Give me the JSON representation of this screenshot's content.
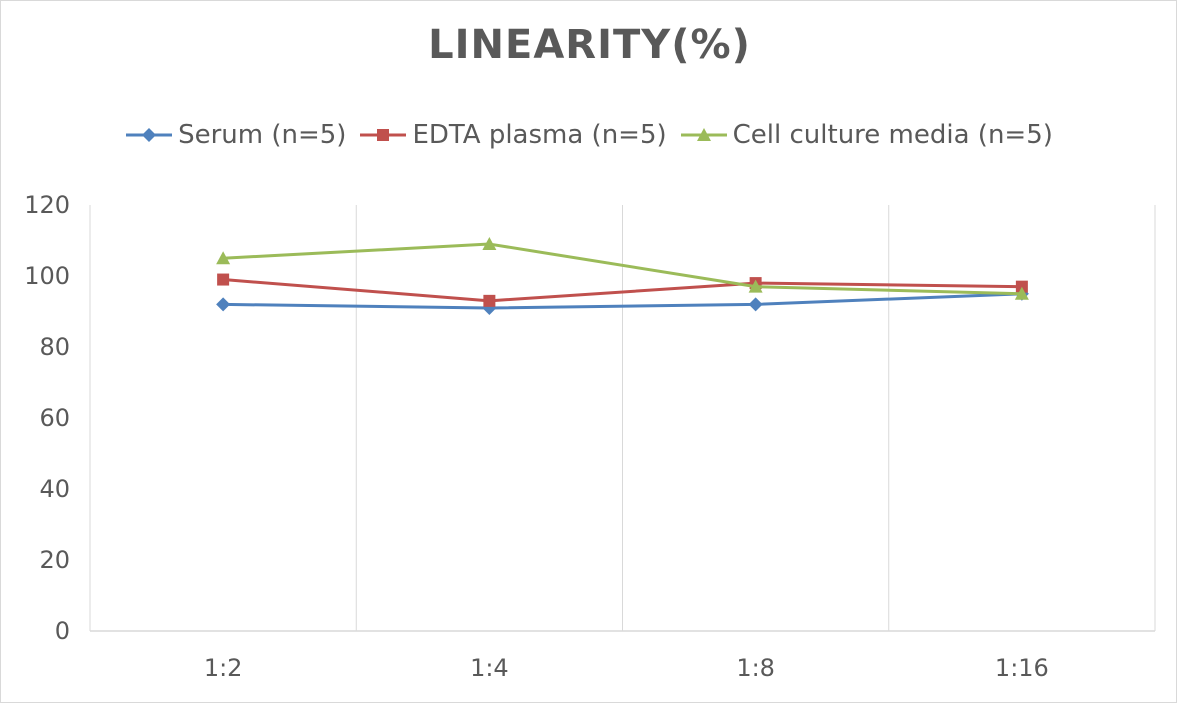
{
  "chart_data": {
    "type": "line",
    "title": "LINEARITY(%)",
    "categories": [
      "1:2",
      "1:4",
      "1:8",
      "1:16"
    ],
    "ylim": [
      0,
      120
    ],
    "yticks": [
      0,
      20,
      40,
      60,
      80,
      100,
      120
    ],
    "grid": "vertical",
    "legend_position": "top",
    "series": [
      {
        "name": "Serum (n=5)",
        "values": [
          92,
          91,
          92,
          95
        ],
        "color": "#4f81bd",
        "marker": "diamond"
      },
      {
        "name": "EDTA plasma (n=5)",
        "values": [
          99,
          93,
          98,
          97
        ],
        "color": "#c0504d",
        "marker": "square"
      },
      {
        "name": "Cell culture media (n=5)",
        "values": [
          105,
          109,
          97,
          95
        ],
        "color": "#9bbb59",
        "marker": "triangle"
      }
    ]
  }
}
